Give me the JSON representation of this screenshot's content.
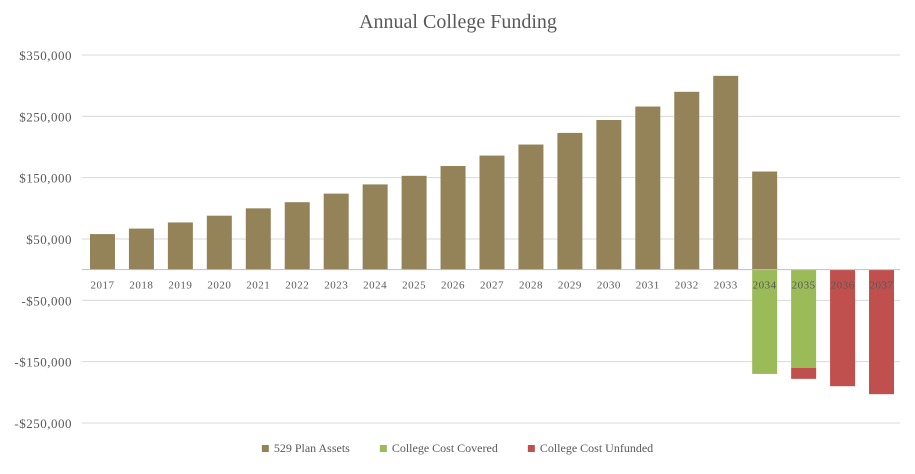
{
  "chart_data": {
    "type": "bar",
    "title": "Annual College Funding",
    "xlabel": "",
    "ylabel": "",
    "categories": [
      "2017",
      "2018",
      "2019",
      "2020",
      "2021",
      "2022",
      "2023",
      "2024",
      "2025",
      "2026",
      "2027",
      "2028",
      "2029",
      "2030",
      "2031",
      "2032",
      "2033",
      "2034",
      "2035",
      "2036",
      "2037"
    ],
    "series": [
      {
        "name": "529 Plan Assets",
        "color": "#948358",
        "values": [
          58000,
          67000,
          77000,
          88000,
          100000,
          110000,
          124000,
          139000,
          153000,
          169000,
          186000,
          204000,
          223000,
          244000,
          266000,
          290000,
          316000,
          160000,
          0,
          0,
          0
        ]
      },
      {
        "name": "College Cost Covered",
        "color": "#9bbb59",
        "values": [
          0,
          0,
          0,
          0,
          0,
          0,
          0,
          0,
          0,
          0,
          0,
          0,
          0,
          0,
          0,
          0,
          0,
          -170000,
          -160000,
          0,
          0
        ]
      },
      {
        "name": "College Cost Unfunded",
        "color": "#c0504d",
        "values": [
          0,
          0,
          0,
          0,
          0,
          0,
          0,
          0,
          0,
          0,
          0,
          0,
          0,
          0,
          0,
          0,
          0,
          0,
          -18000,
          -190000,
          -203000
        ]
      }
    ],
    "ylim": [
      -250000,
      350000
    ],
    "yticks": [
      350000,
      250000,
      150000,
      50000,
      -50000,
      -150000,
      -250000
    ],
    "ytick_labels": [
      "$350,000",
      "$250,000",
      "$150,000",
      "$50,000",
      "-$50,000",
      "-$150,000",
      "-$250,000"
    ],
    "grid": true,
    "legend_position": "bottom"
  }
}
